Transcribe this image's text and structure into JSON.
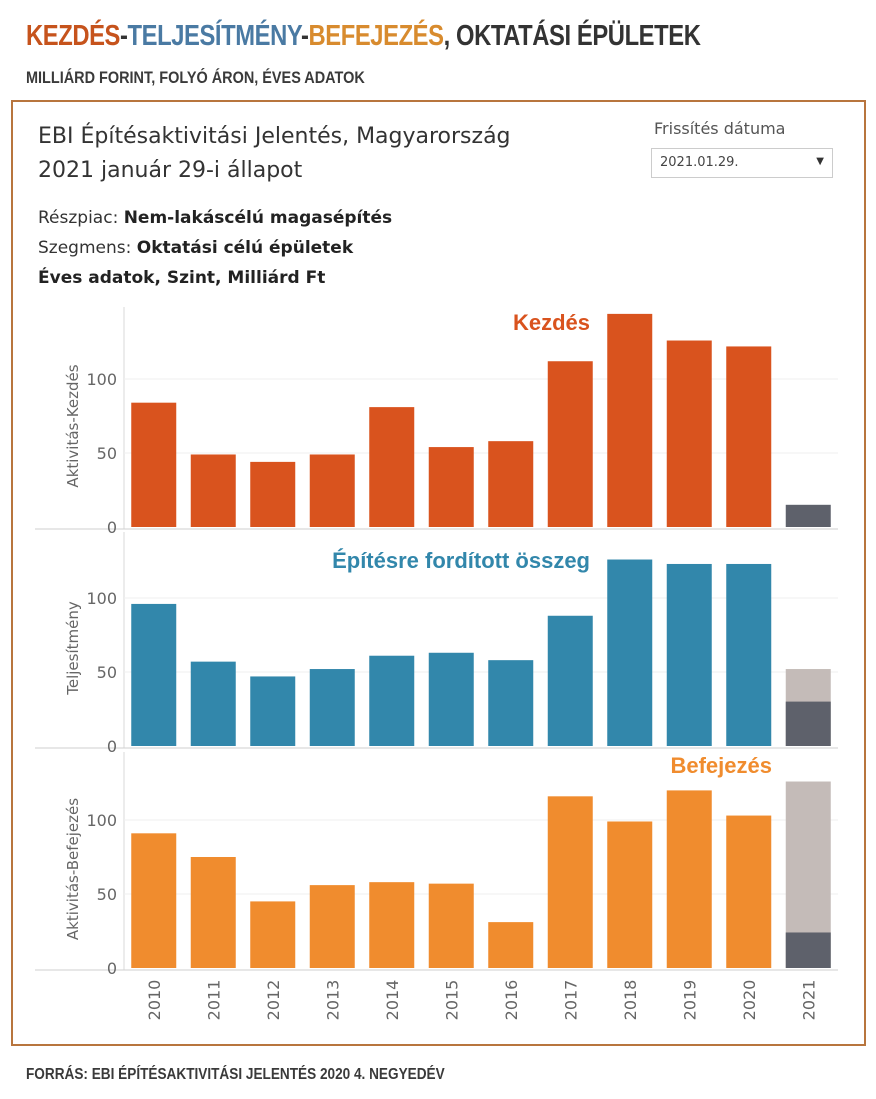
{
  "header": {
    "title_parts": [
      {
        "text": "KEZDÉS",
        "color": "#c6531c"
      },
      {
        "text": "-",
        "color": "#333333"
      },
      {
        "text": "TELJESÍTMÉNY",
        "color": "#4a7aa3"
      },
      {
        "text": "-",
        "color": "#333333"
      },
      {
        "text": "BEFEJEZÉS",
        "color": "#d88b2e"
      },
      {
        "text": ", OKTATÁSI ÉPÜLETEK",
        "color": "#333333"
      }
    ],
    "subtitle": "MILLIÁRD FORINT, FOLYÓ ÁRON, ÉVES ADATOK"
  },
  "dashboard": {
    "title_line1": "EBI Építésaktivitási Jelentés, Magyarország",
    "title_line2": "2021 január 29-i állapot",
    "filter_label": "Frissítés dátuma",
    "filter_value": "2021.01.29.",
    "meta": {
      "market_label": "Részpiac: ",
      "market_value": "Nem-lakáscélú magasépítés",
      "segment_label": "Szegmens: ",
      "segment_value": "Oktatási célú épületek",
      "units": "Éves adatok, Szint, Milliárd Ft"
    }
  },
  "chart_data": {
    "type": "bar",
    "categories": [
      "2010",
      "2011",
      "2012",
      "2013",
      "2014",
      "2015",
      "2016",
      "2017",
      "2018",
      "2019",
      "2020",
      "2021"
    ],
    "panels": [
      {
        "name": "Kezdés",
        "ylabel": "Aktivitás-Kezdés",
        "color": "#d9531e",
        "yticks": [
          0,
          50,
          100
        ],
        "ylim": [
          0,
          150
        ],
        "values": [
          84,
          49,
          44,
          49,
          81,
          54,
          58,
          112,
          144,
          126,
          122,
          15
        ],
        "last_actual_color": "#5e616b",
        "extra_2021_estimate": null
      },
      {
        "name": "Építésre fordított összeg",
        "ylabel": "Teljesítmény",
        "color": "#3287ab",
        "yticks": [
          0,
          50,
          100
        ],
        "ylim": [
          0,
          150
        ],
        "values": [
          96,
          57,
          47,
          52,
          61,
          63,
          58,
          88,
          126,
          123,
          123,
          30
        ],
        "last_actual_color": "#5e616b",
        "extra_2021_estimate": 52
      },
      {
        "name": "Befejezés",
        "ylabel": "Aktivitás-Befejezés",
        "color": "#f08c2e",
        "yticks": [
          0,
          50,
          100
        ],
        "ylim": [
          0,
          150
        ],
        "values": [
          91,
          75,
          45,
          56,
          58,
          57,
          31,
          116,
          99,
          120,
          103,
          24
        ],
        "last_actual_color": "#5e616b",
        "extra_2021_estimate": 126
      }
    ],
    "estimate_color": "#c4bbb8"
  },
  "footer": {
    "source": "FORRÁS: EBI ÉPÍTÉSAKTIVITÁSI JELENTÉS 2020 4. NEGYEDÉV"
  }
}
